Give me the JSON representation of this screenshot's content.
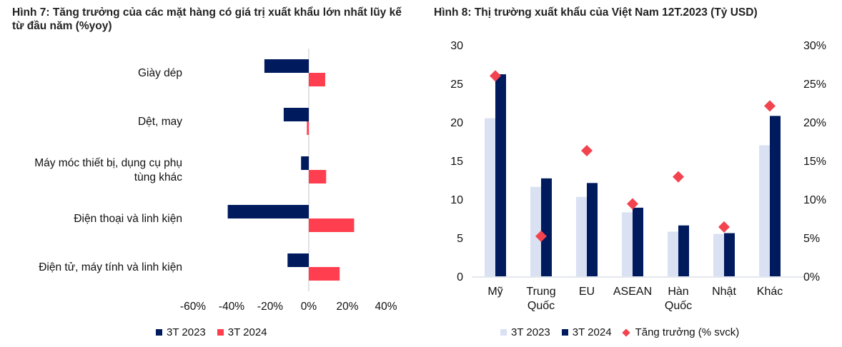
{
  "chart_data": [
    {
      "type": "bar",
      "orientation": "horizontal",
      "title": "Hình 7: Tăng trưởng của các mặt hàng có giá trị xuất khẩu lớn nhất lũy kế từ đầu năm (%yoy)",
      "categories": [
        "Giày dép",
        "Dệt, may",
        "Máy móc thiết bị, dụng cụ phụ tùng khác",
        "Điện thoại và linh kiện",
        "Điện tử, máy tính và linh kiện"
      ],
      "category_lines": [
        [
          "Giày dép"
        ],
        [
          "Dệt, may"
        ],
        [
          "Máy móc thiết bị, dụng cụ phụ",
          "tùng khác"
        ],
        [
          "Điện thoại và linh kiện"
        ],
        [
          "Điện tử, máy tính và linh kiện"
        ]
      ],
      "series": [
        {
          "name": "3T 2023",
          "color": "#001A5E",
          "values": [
            -23,
            -13,
            -4,
            -42,
            -11
          ]
        },
        {
          "name": "3T 2024",
          "color": "#FF3F4F",
          "values": [
            8.5,
            -1,
            9,
            23.5,
            16
          ]
        }
      ],
      "xlim": [
        -60,
        40
      ],
      "xticks": [
        "-60%",
        "-40%",
        "-20%",
        "0%",
        "20%",
        "40%"
      ],
      "xtick_values": [
        -60,
        -40,
        -20,
        0,
        20,
        40
      ],
      "grid": false,
      "legend": "bottom"
    },
    {
      "type": "bar+scatter",
      "title": "Hình 8: Thị trường xuất khẩu của Việt Nam 12T.2023 (Tỷ USD)",
      "categories": [
        "Mỹ",
        "Trung Quốc",
        "EU",
        "ASEAN",
        "Hàn Quốc",
        "Nhật",
        "Khác"
      ],
      "category_lines": [
        [
          "Mỹ"
        ],
        [
          "Trung",
          "Quốc"
        ],
        [
          "EU"
        ],
        [
          "ASEAN"
        ],
        [
          "Hàn",
          "Quốc"
        ],
        [
          "Nhật"
        ],
        [
          "Khác"
        ]
      ],
      "series": [
        {
          "name": "3T 2023",
          "type": "bar",
          "axis": "left",
          "color": "#D9E1F2",
          "values": [
            20.5,
            11.6,
            10.3,
            8.3,
            5.8,
            5.5,
            17.0
          ]
        },
        {
          "name": "3T 2024",
          "type": "bar",
          "axis": "left",
          "color": "#001A5E",
          "values": [
            26.2,
            12.7,
            12.1,
            8.9,
            6.6,
            5.6,
            20.8
          ]
        },
        {
          "name": "Tăng trưởng (% svck)",
          "type": "scatter",
          "marker": "diamond",
          "axis": "right",
          "color": "#F2434F",
          "values": [
            26.0,
            5.2,
            16.3,
            9.4,
            12.9,
            6.4,
            22.1
          ]
        }
      ],
      "ylim_left": [
        0,
        30
      ],
      "yticks_left": [
        "0",
        "5",
        "10",
        "15",
        "20",
        "25",
        "30"
      ],
      "ylim_right": [
        0,
        30
      ],
      "yticks_right": [
        "0%",
        "5%",
        "10%",
        "15%",
        "20%",
        "25%",
        "30%"
      ],
      "grid": false,
      "legend": "bottom"
    }
  ]
}
